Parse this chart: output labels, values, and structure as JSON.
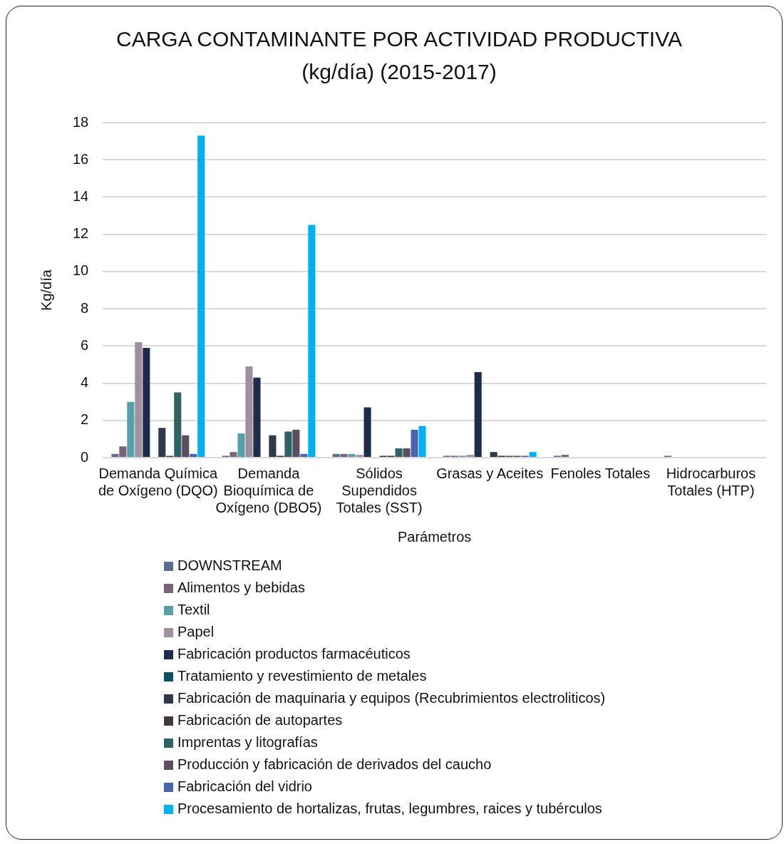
{
  "chart_data": {
    "type": "bar",
    "title": "CARGA CONTAMINANTE POR ACTIVIDAD PRODUCTIVA (kg/día) (2015-2017)",
    "xlabel": "Parámetros",
    "ylabel": "Kg/día",
    "categories": [
      "Demanda Química de Oxígeno (DQO)",
      "Demanda Bioquímica de Oxígeno (DBO5)",
      "Sólidos Supendidos Totales (SST)",
      "Grasas y Aceites",
      "Fenoles Totales",
      "Hidrocarburos Totales (HTP)"
    ],
    "series": [
      {
        "name": "DOWNSTREAM",
        "color": "#5a6e8f",
        "values": [
          0.2,
          0.1,
          0.2,
          0.1,
          0.1,
          0.1
        ]
      },
      {
        "name": "Alimentos y bebidas",
        "color": "#7a6478",
        "values": [
          0.6,
          0.3,
          0.2,
          0.1,
          0.15,
          null
        ]
      },
      {
        "name": "Textil",
        "color": "#56a0aa",
        "values": [
          3.0,
          1.3,
          0.2,
          0.1,
          null,
          null
        ]
      },
      {
        "name": "Papel",
        "color": "#9f8fa0",
        "values": [
          6.2,
          4.9,
          0.15,
          0.15,
          null,
          null
        ]
      },
      {
        "name": "Fabricación productos farmacéuticos",
        "color": "#1f2b4a",
        "values": [
          5.9,
          4.3,
          2.7,
          4.6,
          null,
          null
        ]
      },
      {
        "name": "Tratamiento y revestimiento de metales",
        "color": "#0f4f66",
        "values": [
          0,
          0,
          0,
          0,
          null,
          null
        ]
      },
      {
        "name": "Fabricación de maquinaria y equipos (Recubrimientos electroliticos)",
        "color": "#2e3a4c",
        "values": [
          1.6,
          1.2,
          0.1,
          0.3,
          null,
          null
        ]
      },
      {
        "name": "Fabricación de autopartes",
        "color": "#43363f",
        "values": [
          0.1,
          0.1,
          0.1,
          0.1,
          null,
          null
        ]
      },
      {
        "name": "Imprentas y litografías",
        "color": "#2f6265",
        "values": [
          3.5,
          1.4,
          0.5,
          0.1,
          null,
          null
        ]
      },
      {
        "name": "Producción y fabricación de derivados del caucho",
        "color": "#5b4e5d",
        "values": [
          1.2,
          1.5,
          0.5,
          0.1,
          null,
          null
        ]
      },
      {
        "name": "Fabricación del vidrio",
        "color": "#4a64b0",
        "values": [
          0.2,
          0.2,
          1.5,
          0.1,
          null,
          null
        ]
      },
      {
        "name": "Procesamiento de hortalizas, frutas, legumbres, raices y tubérculos",
        "color": "#00b0f0",
        "values": [
          17.3,
          12.5,
          1.7,
          0.3,
          null,
          null
        ]
      }
    ],
    "ylim": [
      0,
      18
    ],
    "yticks": [
      0,
      2,
      4,
      6,
      8,
      10,
      12,
      14,
      16,
      18
    ],
    "grid": "y",
    "legend": "bottom"
  }
}
